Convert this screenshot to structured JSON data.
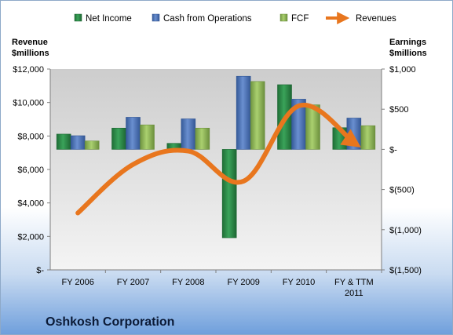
{
  "chart_data": {
    "type": "bar",
    "title": "Oshkosh Corporation",
    "categories": [
      "FY 2006",
      "FY 2007",
      "FY 2008",
      "FY 2009",
      "FY 2010",
      "FY & TTM 2011"
    ],
    "left_axis": {
      "label_line1": "Revenue",
      "label_line2": "$millions",
      "ylim": [
        0,
        12000
      ],
      "ticks": [
        0,
        2000,
        4000,
        6000,
        8000,
        10000,
        12000
      ],
      "tick_labels": [
        "$-",
        "$2,000",
        "$4,000",
        "$6,000",
        "$8,000",
        "$10,000",
        "$12,000"
      ]
    },
    "right_axis": {
      "label_line1": "Earnings",
      "label_line2": "$millions",
      "ylim": [
        -1500,
        1000
      ],
      "ticks": [
        -1500,
        -1000,
        -500,
        0,
        500,
        1000
      ],
      "tick_labels": [
        "$(1,500)",
        "$(1,000)",
        "$(500)",
        "$-",
        "$500",
        "$1,000"
      ]
    },
    "series": [
      {
        "name": "Net Income",
        "axis": "right",
        "type": "bar",
        "color": "#2e8b4a",
        "values": [
          190,
          265,
          75,
          -1100,
          805,
          270
        ]
      },
      {
        "name": "Cash from Operations",
        "axis": "right",
        "type": "bar",
        "color": "#4a6fb0",
        "values": [
          170,
          400,
          380,
          910,
          625,
          390
        ]
      },
      {
        "name": "FCF",
        "axis": "right",
        "type": "bar",
        "color": "#8fb55a",
        "values": [
          105,
          305,
          265,
          845,
          555,
          295
        ]
      },
      {
        "name": "Revenues",
        "axis": "left",
        "type": "line",
        "color": "#e8761e",
        "values": [
          3400,
          6300,
          7100,
          5300,
          9800,
          7600
        ]
      }
    ],
    "grid": false,
    "legend_position": "top"
  }
}
